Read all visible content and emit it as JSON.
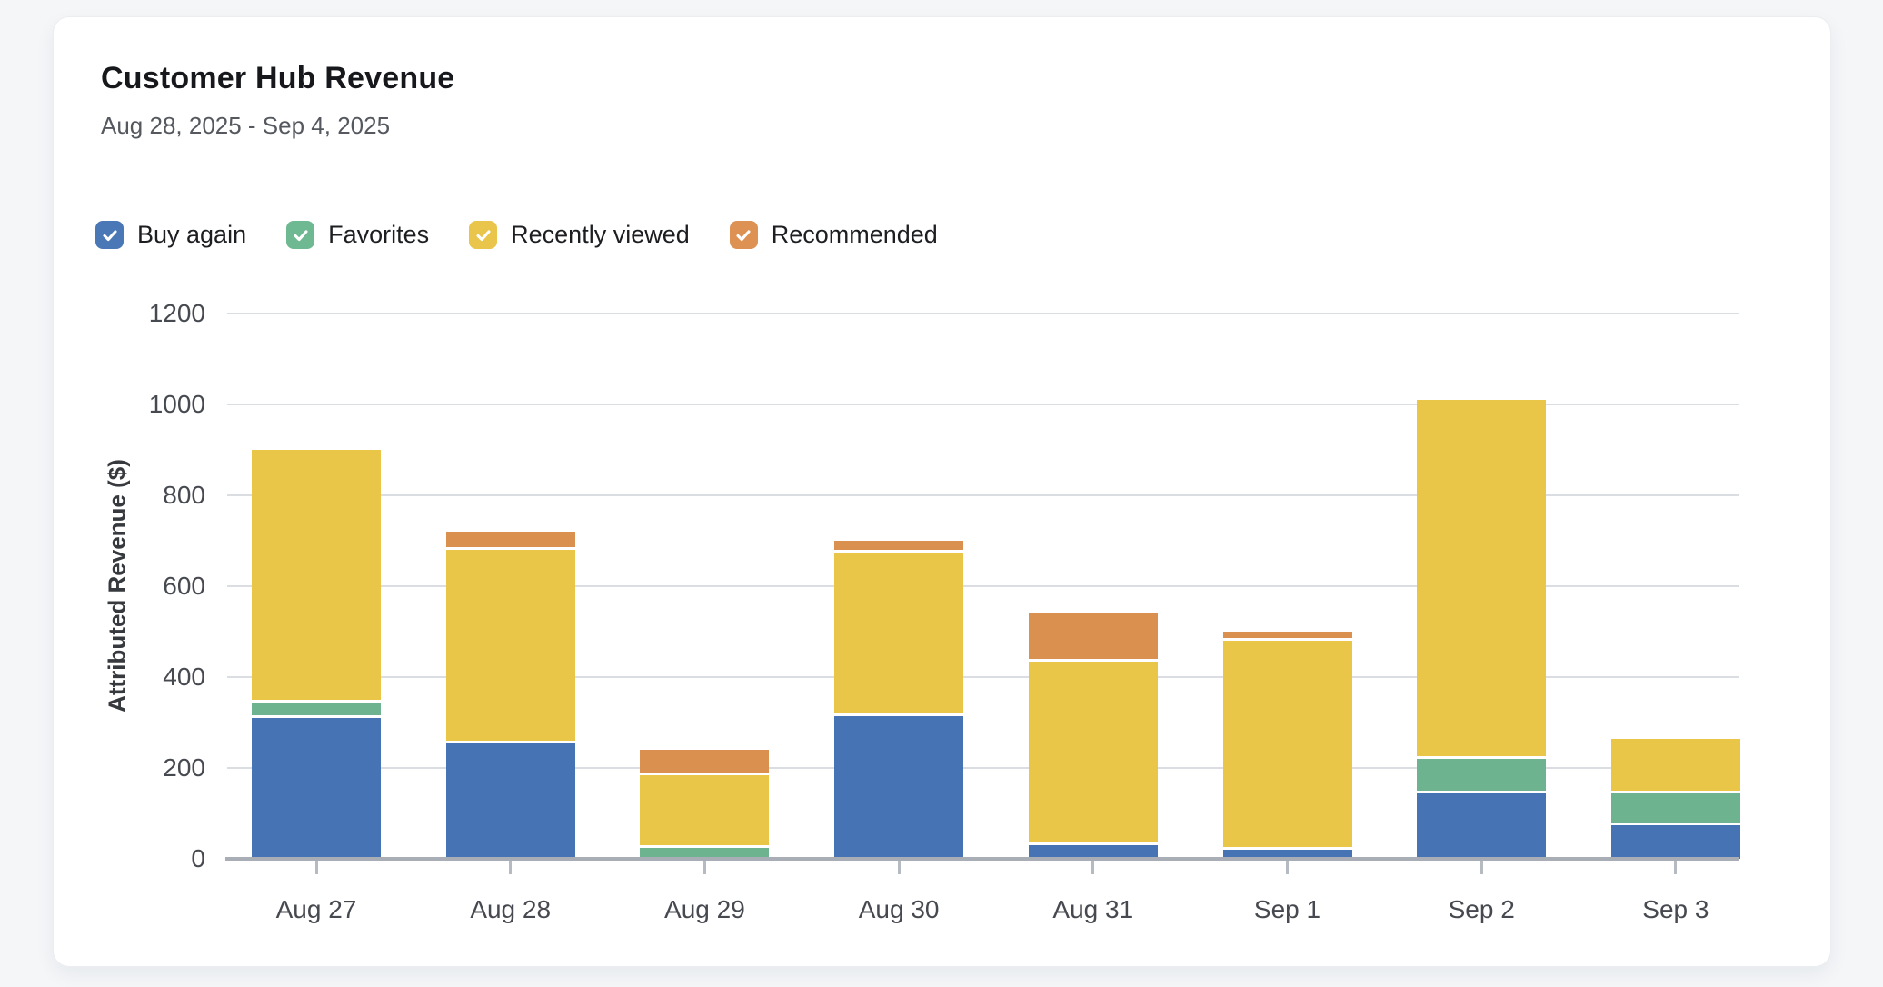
{
  "card": {
    "title": "Customer Hub Revenue",
    "subtitle": "Aug 28, 2025 - Sep 4, 2025"
  },
  "legend": {
    "items": [
      {
        "label": "Buy again",
        "color": "#4a77b5",
        "checked": true
      },
      {
        "label": "Favorites",
        "color": "#6fb992",
        "checked": true
      },
      {
        "label": "Recently viewed",
        "color": "#eac54c",
        "checked": true
      },
      {
        "label": "Recommended",
        "color": "#dd9254",
        "checked": true
      }
    ],
    "checkmark_icon": "checkmark"
  },
  "chart_data": {
    "type": "bar",
    "stacked": true,
    "categories": [
      "Aug 27",
      "Aug 28",
      "Aug 29",
      "Aug 30",
      "Aug 31",
      "Sep 1",
      "Sep 2",
      "Sep 3"
    ],
    "series": [
      {
        "name": "Buy again",
        "color": "#4573b4",
        "values": [
          310,
          255,
          0,
          315,
          30,
          20,
          145,
          75
        ]
      },
      {
        "name": "Favorites",
        "color": "#6db390",
        "values": [
          35,
          0,
          25,
          0,
          0,
          0,
          75,
          70
        ]
      },
      {
        "name": "Recently viewed",
        "color": "#e9c647",
        "values": [
          555,
          425,
          160,
          360,
          405,
          460,
          790,
          120
        ]
      },
      {
        "name": "Recommended",
        "color": "#da9150",
        "values": [
          0,
          40,
          55,
          25,
          105,
          20,
          0,
          0
        ]
      }
    ],
    "totals": [
      900,
      720,
      240,
      700,
      540,
      500,
      1010,
      265
    ],
    "ylabel": "Attributed Revenue ($)",
    "xlabel": "",
    "ylim": [
      0,
      1200
    ],
    "ytick_labels": [
      "0",
      "200",
      "400",
      "600",
      "800",
      "1000",
      "1200"
    ],
    "grid": true,
    "legend_position": "top"
  }
}
